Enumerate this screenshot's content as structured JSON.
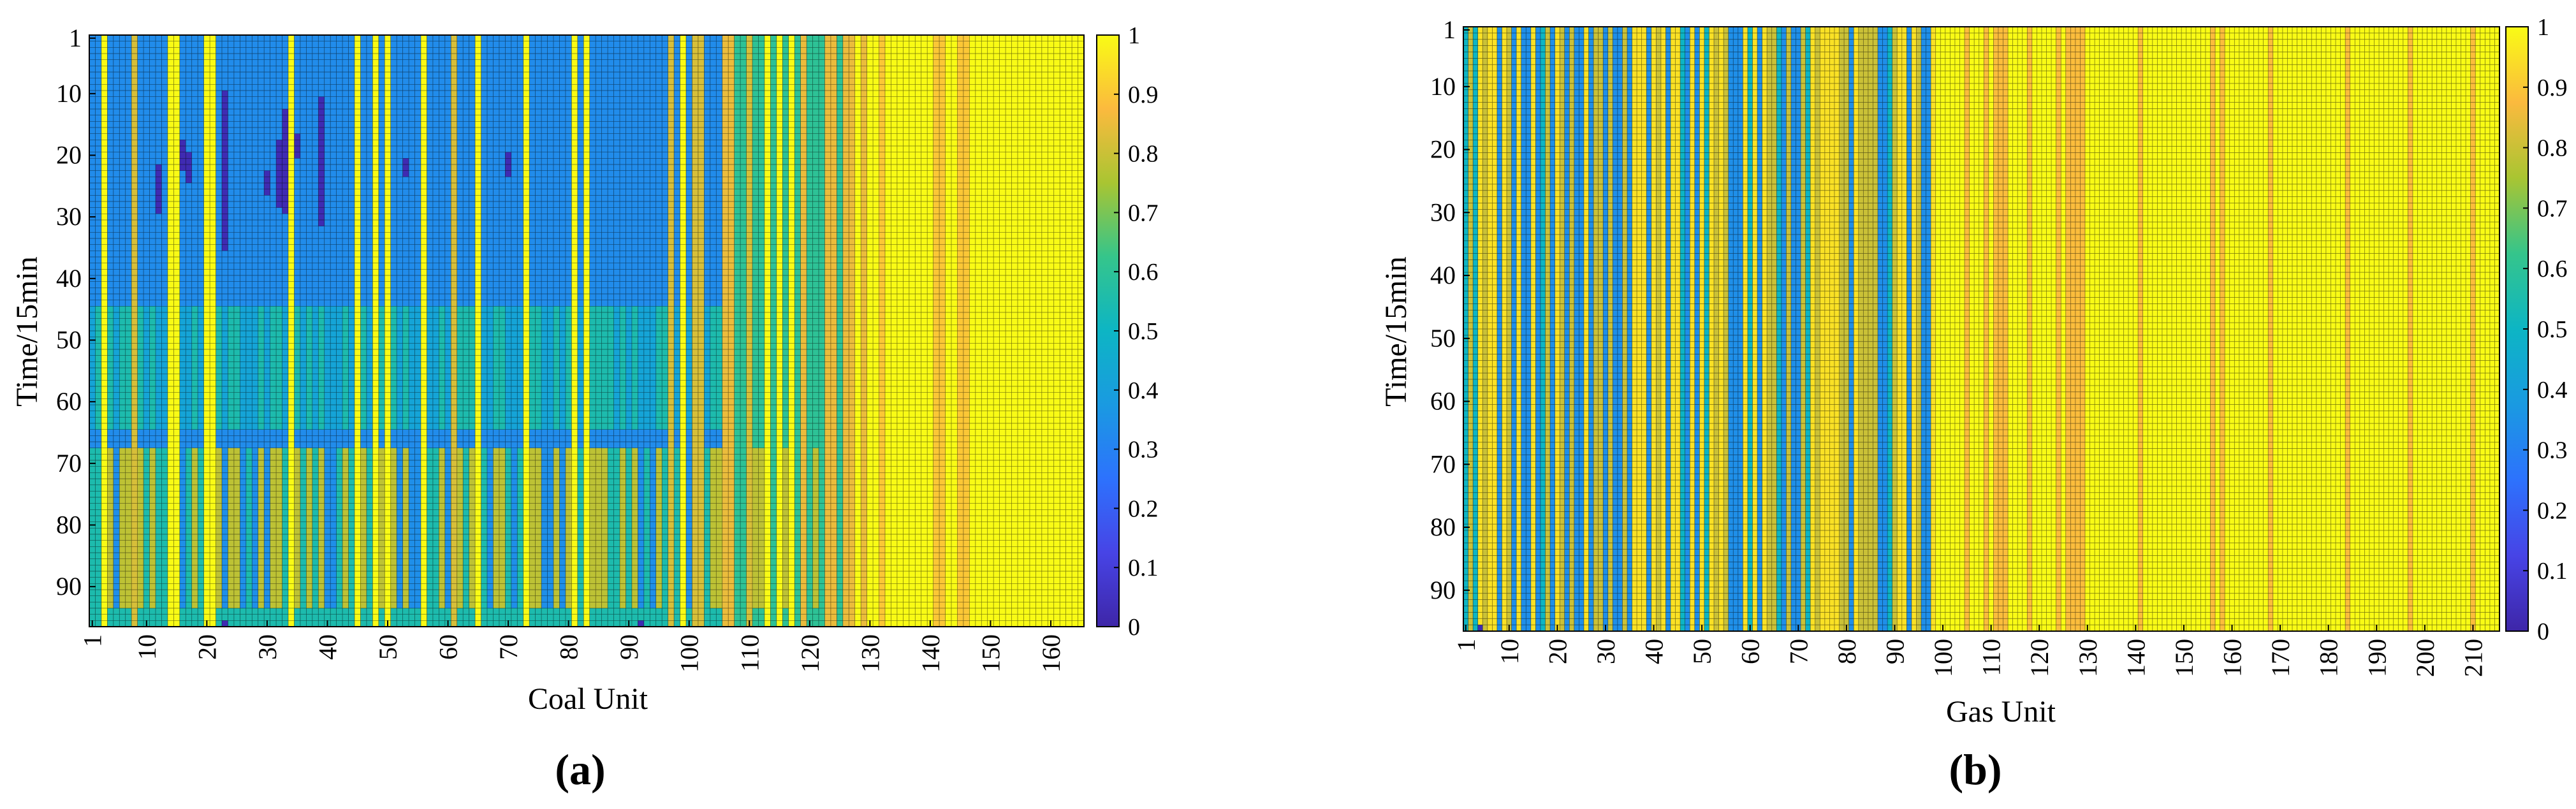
{
  "chart_data": [
    {
      "type": "heatmap",
      "panel_label": "(a)",
      "xlabel": "Coal Unit",
      "ylabel": "Time/15min",
      "x_range": [
        1,
        165
      ],
      "y_range": [
        1,
        96
      ],
      "x_ticks": [
        "1",
        "10",
        "20",
        "30",
        "40",
        "50",
        "60",
        "70",
        "80",
        "90",
        "100",
        "110",
        "120",
        "130",
        "140",
        "150",
        "160"
      ],
      "y_ticks": [
        "1",
        "10",
        "20",
        "30",
        "40",
        "50",
        "60",
        "70",
        "80",
        "90"
      ],
      "colorbar_ticks": [
        "0",
        "0.1",
        "0.2",
        "0.3",
        "0.4",
        "0.5",
        "0.6",
        "0.7",
        "0.8",
        "0.9",
        "1"
      ],
      "colorbar_range": [
        0,
        1
      ],
      "description_of_values": "Normalized unit output per 15-min interval; roughly 0.35 for most units 1-105 with a 0.55 band around t=45-65 and 0.75 around t=68-95; units above ~130 near 1.0; isolated zero cells (off) in units 1-40."
    },
    {
      "type": "heatmap",
      "panel_label": "(b)",
      "xlabel": "Gas Unit",
      "ylabel": "Time/15min",
      "x_range": [
        1,
        215
      ],
      "y_range": [
        1,
        96
      ],
      "x_ticks": [
        "1",
        "10",
        "20",
        "30",
        "40",
        "50",
        "60",
        "70",
        "80",
        "90",
        "100",
        "110",
        "120",
        "130",
        "140",
        "150",
        "160",
        "170",
        "180",
        "190",
        "200",
        "210"
      ],
      "y_ticks": [
        "1",
        "10",
        "20",
        "30",
        "40",
        "50",
        "60",
        "70",
        "80",
        "90"
      ],
      "colorbar_ticks": [
        "0",
        "0.1",
        "0.2",
        "0.3",
        "0.4",
        "0.5",
        "0.6",
        "0.7",
        "0.8",
        "0.9",
        "1"
      ],
      "colorbar_range": [
        0,
        1
      ],
      "description_of_values": "Units 1-98 alternate between ~0.35 (blue) and ~0.8-1.0 (orange/yellow) columns, constant over time; units 99-215 near 1.0 with some ~0.88 columns."
    }
  ]
}
